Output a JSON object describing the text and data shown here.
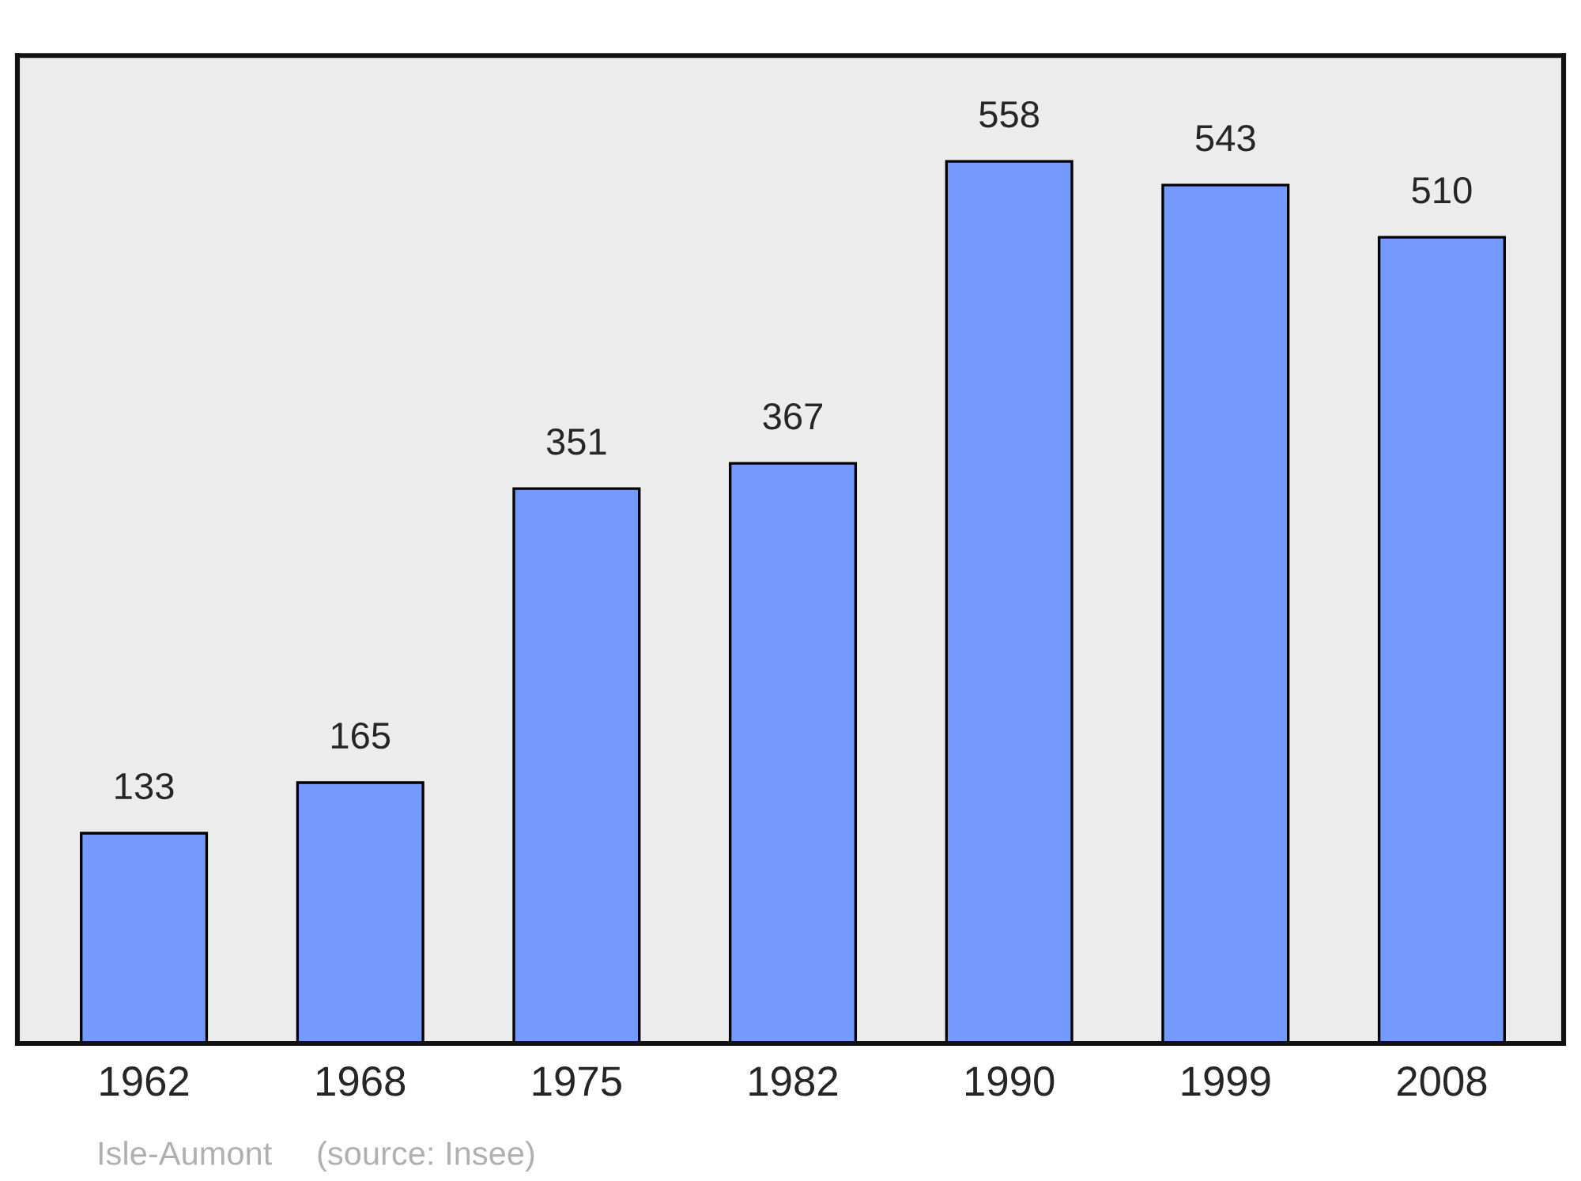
{
  "chart_data": {
    "type": "bar",
    "categories": [
      "1962",
      "1968",
      "1975",
      "1982",
      "1990",
      "1999",
      "2008"
    ],
    "values": [
      133,
      165,
      351,
      367,
      558,
      543,
      510
    ],
    "color": "#7499ff",
    "data_labels": true,
    "grid": false,
    "annotations": [
      "Isle-Aumont",
      "(source: Insee)"
    ]
  }
}
